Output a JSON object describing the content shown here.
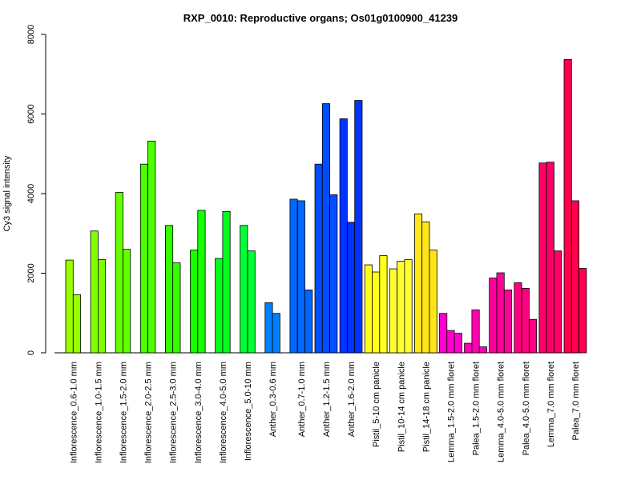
{
  "chart_data": {
    "type": "bar",
    "title": "RXP_0010: Reproductive organs; Os01g0100900_41239",
    "xlabel": "",
    "ylabel": "Cy3 signal intensity",
    "ylim": [
      0,
      8000
    ],
    "yticks": [
      "0",
      "2000",
      "4000",
      "6000",
      "8000"
    ],
    "grid": false,
    "legend": "none",
    "groups": [
      {
        "label": "Inflorescence_0.6-1.0 mm",
        "color": "#99FF00",
        "values": [
          2330,
          1460
        ]
      },
      {
        "label": "Inflorescence_1.0-1.5 mm",
        "color": "#80FF00",
        "values": [
          3060,
          2340
        ]
      },
      {
        "label": "Inflorescence_1.5-2.0 mm",
        "color": "#66FF00",
        "values": [
          4030,
          2600
        ]
      },
      {
        "label": "Inflorescence_2.0-2.5 mm",
        "color": "#4DFF00",
        "values": [
          4740,
          5320
        ]
      },
      {
        "label": "Inflorescence_2.5-3.0 mm",
        "color": "#33FF00",
        "values": [
          3200,
          2260
        ]
      },
      {
        "label": "Inflorescence_3.0-4.0 mm",
        "color": "#1AFF00",
        "values": [
          2580,
          3580
        ]
      },
      {
        "label": "Inflorescence_4.0-5.0 mm",
        "color": "#00FF1A",
        "values": [
          2370,
          3550
        ]
      },
      {
        "label": "Inflorescence_5.0-10 mm",
        "color": "#00FF33",
        "values": [
          3200,
          2560
        ]
      },
      {
        "label": "Anther_0.3-0.6 mm",
        "color": "#0080FF",
        "values": [
          1260,
          990
        ]
      },
      {
        "label": "Anther_0.7-1.0 mm",
        "color": "#0066FF",
        "values": [
          3860,
          3820,
          1580
        ]
      },
      {
        "label": "Anther_1.2-1.5 mm",
        "color": "#004DFF",
        "values": [
          4740,
          6260,
          3970
        ]
      },
      {
        "label": "Anther_1.6-2.0 mm",
        "color": "#0033FF",
        "values": [
          5880,
          3280,
          6340
        ]
      },
      {
        "label": "Pistil_5-10 cm panicle",
        "color": "#FFFF1A",
        "values": [
          2210,
          2030,
          2440
        ]
      },
      {
        "label": "Pistil_10-14 cm panicle",
        "color": "#FFFF33",
        "values": [
          2110,
          2300,
          2340
        ]
      },
      {
        "label": "Pistil_14-18 cm panicle",
        "color": "#FFE619",
        "values": [
          3490,
          3290,
          2580
        ]
      },
      {
        "label": "Lemma_1.5-2.0 mm floret",
        "color": "#FF00CC",
        "values": [
          990,
          560,
          490
        ]
      },
      {
        "label": "Palea_1.5-2.0 mm floret",
        "color": "#FF00B3",
        "values": [
          240,
          1080,
          150
        ]
      },
      {
        "label": "Lemma_4.0-5.0 mm floret",
        "color": "#FF0099",
        "values": [
          1880,
          2010,
          1580
        ]
      },
      {
        "label": "Palea_4.0-5.0 mm floret",
        "color": "#FF0080",
        "values": [
          1760,
          1620,
          840
        ]
      },
      {
        "label": "Lemma_7.0 mm floret",
        "color": "#FF0066",
        "values": [
          4770,
          4790,
          2560
        ]
      },
      {
        "label": "Palea_7.0 mm floret",
        "color": "#FF004D",
        "values": [
          7370,
          3820,
          2120
        ]
      }
    ]
  }
}
